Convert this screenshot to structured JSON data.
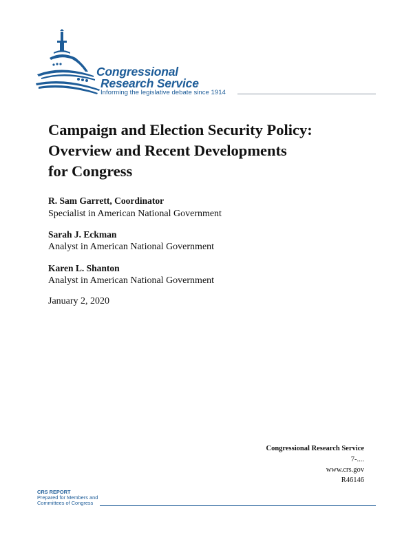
{
  "logo": {
    "line1": "Congressional",
    "line2": "Research Service",
    "tagline": "Informing the legislative debate since 1914",
    "color": "#1d5c98"
  },
  "title": [
    "Campaign and Election Security Policy:",
    "Overview and Recent Developments",
    "for Congress"
  ],
  "authors": [
    {
      "name": "R. Sam Garrett, Coordinator",
      "role": "Specialist in American National Government"
    },
    {
      "name": "Sarah J. Eckman",
      "role": "Analyst in American National Government"
    },
    {
      "name": "Karen L. Shanton",
      "role": "Analyst in American National Government"
    }
  ],
  "date": "January 2, 2020",
  "publisher_block": {
    "org": "Congressional Research Service",
    "phone": "7-....",
    "website": "www.crs.gov",
    "report_number": "R46146"
  },
  "footer": {
    "label": "CRS REPORT",
    "line1": "Prepared for Members and",
    "line2": "Committees of Congress"
  }
}
